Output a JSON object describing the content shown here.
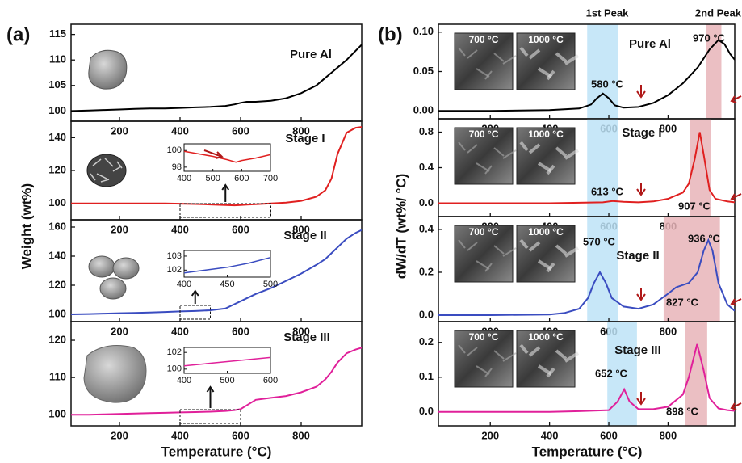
{
  "panels": [
    {
      "label": "(a)",
      "ylabel": "Weight (wt%)",
      "xlabel": "Temperature (°C)"
    },
    {
      "label": "(b)",
      "ylabel": "dW/dT (wt%/ °C)",
      "xlabel": "Temperature (°C)",
      "peak_labels": [
        "1st Peak",
        "2nd Peak"
      ]
    }
  ],
  "chart_data": [
    {
      "type": "line",
      "title": "Pure Al",
      "color": "#000000",
      "xlim": [
        40,
        1000
      ],
      "xticks": [
        200,
        400,
        600,
        800
      ],
      "ylim": [
        98,
        117
      ],
      "yticks": [
        100,
        105,
        110,
        115
      ],
      "x": [
        40,
        100,
        150,
        200,
        250,
        300,
        350,
        400,
        450,
        500,
        550,
        580,
        600,
        620,
        650,
        700,
        750,
        800,
        850,
        880,
        900,
        920,
        950,
        980,
        1000
      ],
      "values": [
        100,
        100.1,
        100.2,
        100.3,
        100.4,
        100.5,
        100.5,
        100.6,
        100.7,
        100.8,
        101,
        101.3,
        101.6,
        101.8,
        101.8,
        102,
        102.5,
        103.5,
        105,
        106.5,
        107.5,
        108.5,
        110,
        111.8,
        113
      ]
    },
    {
      "type": "line",
      "title": "Stage I",
      "color": "#e02020",
      "xlim": [
        40,
        1000
      ],
      "xticks": [
        200,
        400,
        600,
        800
      ],
      "ylim": [
        90,
        150
      ],
      "yticks": [
        100,
        120,
        140
      ],
      "x": [
        40,
        100,
        150,
        200,
        250,
        300,
        350,
        400,
        450,
        500,
        550,
        580,
        600,
        620,
        650,
        700,
        750,
        800,
        850,
        880,
        900,
        920,
        950,
        980,
        1000
      ],
      "values": [
        100,
        100,
        100,
        100,
        100,
        100,
        100,
        99.8,
        99.6,
        99.3,
        99,
        98.8,
        99,
        99.2,
        99.5,
        100,
        100.5,
        101.5,
        104,
        108,
        115,
        130,
        143,
        146,
        146.5
      ],
      "inset": {
        "xlim": [
          400,
          700
        ],
        "xticks": [
          400,
          500,
          600,
          700
        ],
        "ylim": [
          97.5,
          100.8
        ],
        "yticks": [
          98,
          100
        ],
        "x": [
          400,
          450,
          500,
          550,
          580,
          600,
          650,
          700
        ],
        "values": [
          99.9,
          99.6,
          99.3,
          98.9,
          98.6,
          98.8,
          99.1,
          99.5
        ]
      }
    },
    {
      "type": "line",
      "title": "Stage II",
      "color": "#3a4cc0",
      "xlim": [
        40,
        1000
      ],
      "xticks": [
        200,
        400,
        600,
        800
      ],
      "ylim": [
        95,
        165
      ],
      "yticks": [
        100,
        120,
        140,
        160
      ],
      "x": [
        40,
        100,
        150,
        200,
        250,
        300,
        350,
        400,
        450,
        500,
        550,
        580,
        600,
        620,
        650,
        700,
        750,
        800,
        850,
        880,
        900,
        920,
        950,
        980,
        1000
      ],
      "values": [
        100,
        100.2,
        100.5,
        100.8,
        101,
        101.3,
        101.6,
        102,
        102.3,
        102.8,
        104,
        107,
        109,
        111,
        114,
        118,
        123,
        128,
        134,
        138,
        142,
        146,
        152,
        156,
        158
      ],
      "inset": {
        "xlim": [
          400,
          500
        ],
        "xticks": [
          400,
          450,
          500
        ],
        "ylim": [
          101.5,
          103.4
        ],
        "yticks": [
          102,
          103
        ],
        "x": [
          400,
          425,
          450,
          475,
          500
        ],
        "values": [
          101.8,
          102,
          102.2,
          102.5,
          102.9
        ]
      }
    },
    {
      "type": "line",
      "title": "Stage III",
      "color": "#e0209a",
      "xlim": [
        40,
        1000
      ],
      "xticks": [
        200,
        400,
        600,
        800
      ],
      "ylim": [
        97,
        125
      ],
      "yticks": [
        100,
        110,
        120
      ],
      "x": [
        40,
        100,
        150,
        200,
        250,
        300,
        350,
        400,
        450,
        500,
        550,
        580,
        600,
        620,
        650,
        700,
        750,
        800,
        850,
        880,
        900,
        920,
        950,
        980,
        1000
      ],
      "values": [
        100,
        100,
        100.1,
        100.2,
        100.3,
        100.4,
        100.5,
        100.6,
        100.7,
        100.8,
        101,
        101.2,
        101.5,
        102.5,
        104,
        104.5,
        105,
        106,
        107.5,
        109.5,
        111.5,
        114,
        116.5,
        117.5,
        118
      ],
      "inset": {
        "xlim": [
          400,
          600
        ],
        "xticks": [
          400,
          500,
          600
        ],
        "ylim": [
          99.5,
          102.6
        ],
        "yticks": [
          100,
          102
        ],
        "x": [
          400,
          500,
          600
        ],
        "values": [
          100.4,
          100.9,
          101.4
        ]
      }
    },
    {
      "type": "line",
      "title": "Pure Al",
      "color": "#000000",
      "xlim": [
        25,
        1025
      ],
      "xticks": [
        200,
        400,
        600,
        800
      ],
      "ylim": [
        -0.01,
        0.11
      ],
      "yticks": [
        {
          "value": 0,
          "label": "0.00"
        },
        0.05,
        {
          "value": 0.1,
          "label": "0.10"
        }
      ],
      "x": [
        25,
        200,
        400,
        500,
        540,
        560,
        580,
        600,
        620,
        650,
        700,
        750,
        800,
        850,
        900,
        940,
        970,
        990,
        1010,
        1025
      ],
      "values": [
        0,
        0,
        0.001,
        0.003,
        0.008,
        0.016,
        0.022,
        0.016,
        0.007,
        0.004,
        0.005,
        0.01,
        0.02,
        0.035,
        0.055,
        0.078,
        0.09,
        0.085,
        0.072,
        0.065
      ],
      "bands": [
        {
          "x": [
            527,
            630
          ],
          "color": "#bde3f7"
        },
        {
          "x": [
            927,
            980
          ],
          "color": "#e8b4b8"
        }
      ],
      "annotations": [
        "580 °C",
        "970 °C"
      ],
      "images": [
        "700 °C",
        "1000 °C"
      ]
    },
    {
      "type": "line",
      "title": "Stage I",
      "color": "#e02020",
      "xlim": [
        25,
        1025
      ],
      "xticks": [
        200,
        400,
        600,
        800
      ],
      "ylim": [
        -0.15,
        0.95
      ],
      "yticks": [
        {
          "value": 0,
          "label": "0.0"
        },
        0.4,
        0.8
      ],
      "x": [
        25,
        200,
        400,
        500,
        580,
        613,
        650,
        700,
        750,
        800,
        850,
        870,
        890,
        907,
        920,
        940,
        960,
        1000,
        1025
      ],
      "values": [
        0,
        0,
        0,
        0.005,
        0.01,
        0.025,
        0.015,
        0.01,
        0.02,
        0.05,
        0.12,
        0.22,
        0.5,
        0.8,
        0.55,
        0.15,
        0.05,
        0.02,
        0.01
      ],
      "bands": [
        {
          "x": [
            527,
            630
          ],
          "color": "#bde3f7"
        },
        {
          "x": [
            873,
            945
          ],
          "color": "#e8b4b8"
        }
      ],
      "annotations": [
        "613 °C",
        "907 °C"
      ],
      "images": [
        "700 °C",
        "1000 °C"
      ]
    },
    {
      "type": "line",
      "title": "Stage II",
      "color": "#3a4cc0",
      "xlim": [
        25,
        1025
      ],
      "xticks": [
        200,
        400,
        600,
        800
      ],
      "ylim": [
        -0.03,
        0.46
      ],
      "yticks": [
        {
          "value": 0,
          "label": "0.0"
        },
        0.2,
        0.4
      ],
      "x": [
        25,
        200,
        400,
        450,
        500,
        530,
        550,
        570,
        590,
        610,
        650,
        700,
        750,
        800,
        827,
        870,
        900,
        920,
        936,
        950,
        970,
        1000,
        1025
      ],
      "values": [
        0,
        0,
        0.003,
        0.01,
        0.03,
        0.08,
        0.15,
        0.2,
        0.15,
        0.08,
        0.04,
        0.03,
        0.05,
        0.1,
        0.13,
        0.15,
        0.2,
        0.3,
        0.35,
        0.3,
        0.15,
        0.05,
        0.02
      ],
      "bands": [
        {
          "x": [
            527,
            630
          ],
          "color": "#bde3f7"
        },
        {
          "x": [
            785,
            975
          ],
          "color": "#e8b4b8"
        }
      ],
      "annotations": [
        "570 °C",
        "936 °C",
        "827 °C"
      ],
      "images": [
        "700 °C",
        "1000 °C"
      ]
    },
    {
      "type": "line",
      "title": "Stage III",
      "color": "#e0209a",
      "xlim": [
        25,
        1025
      ],
      "xticks": [
        200,
        400,
        600,
        800
      ],
      "ylim": [
        -0.04,
        0.26
      ],
      "yticks": [
        {
          "value": 0,
          "label": "0.0"
        },
        0.1,
        0.2
      ],
      "x": [
        25,
        200,
        400,
        500,
        600,
        630,
        652,
        670,
        700,
        750,
        800,
        850,
        870,
        898,
        920,
        940,
        970,
        1000,
        1025
      ],
      "values": [
        0,
        0,
        0,
        0.002,
        0.005,
        0.03,
        0.065,
        0.03,
        0.008,
        0.008,
        0.015,
        0.05,
        0.1,
        0.195,
        0.12,
        0.04,
        0.01,
        0.005,
        0.003
      ],
      "bands": [
        {
          "x": [
            595,
            695
          ],
          "color": "#bde3f7"
        },
        {
          "x": [
            857,
            932
          ],
          "color": "#e8b4b8"
        }
      ],
      "annotations": [
        "652 °C",
        "898 °C"
      ],
      "images": [
        "700 °C",
        "1000 °C"
      ]
    }
  ]
}
